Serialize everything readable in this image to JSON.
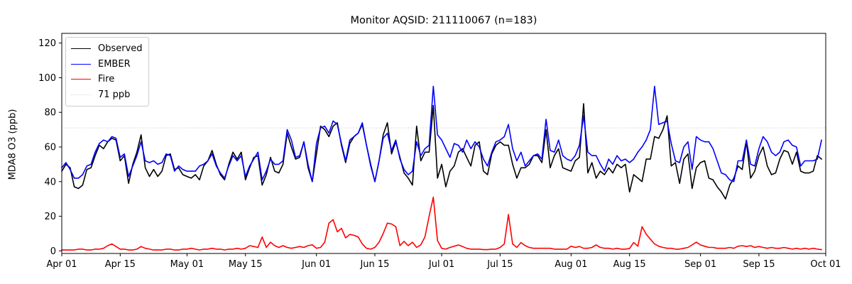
{
  "chart_data": {
    "type": "line",
    "title": "Monitor AQSID: 211110067 (n=183)",
    "ylabel": "MDA8 O3 (ppb)",
    "xlabel": "",
    "ylim": [
      -1.5,
      125.6
    ],
    "yticks": [
      0,
      20,
      40,
      60,
      80,
      100,
      120
    ],
    "x_unit": "days (daily values, Apr 01 – Sep 30)",
    "n_points": 183,
    "grid": false,
    "legend_position": "upper left",
    "xticks": [
      {
        "day": 0,
        "label": "Apr 01"
      },
      {
        "day": 14,
        "label": "Apr 15"
      },
      {
        "day": 30,
        "label": "May 01"
      },
      {
        "day": 44,
        "label": "May 15"
      },
      {
        "day": 61,
        "label": "Jun 01"
      },
      {
        "day": 75,
        "label": "Jun 15"
      },
      {
        "day": 91,
        "label": "Jul 01"
      },
      {
        "day": 105,
        "label": "Jul 15"
      },
      {
        "day": 122,
        "label": "Aug 01"
      },
      {
        "day": 136,
        "label": "Aug 15"
      },
      {
        "day": 153,
        "label": "Sep 01"
      },
      {
        "day": 167,
        "label": "Sep 15"
      },
      {
        "day": 183,
        "label": "Oct 01"
      }
    ],
    "reference_line": {
      "label": "71 ppb",
      "value": 71,
      "color": "#d9d9d9",
      "style": "dotted"
    },
    "series": [
      {
        "name": "Observed",
        "color": "#000000",
        "style": "solid",
        "values": [
          46,
          50,
          48,
          37,
          36,
          38,
          47,
          48,
          55,
          61,
          59,
          63,
          65,
          64,
          52,
          55,
          39,
          50,
          57,
          67,
          48,
          43,
          47,
          43,
          46,
          55,
          56,
          47,
          48,
          44,
          43,
          42,
          44,
          41,
          49,
          52,
          58,
          50,
          44,
          41,
          50,
          57,
          53,
          57,
          41,
          48,
          54,
          55,
          38,
          44,
          54,
          46,
          45,
          50,
          68,
          60,
          53,
          54,
          63,
          48,
          40,
          56,
          72,
          70,
          66,
          72,
          74,
          61,
          51,
          62,
          66,
          68,
          73,
          61,
          50,
          40,
          52,
          67,
          74,
          56,
          63,
          54,
          45,
          42,
          38,
          72,
          52,
          57,
          57,
          84,
          42,
          50,
          37,
          46,
          49,
          57,
          59,
          54,
          49,
          61,
          63,
          46,
          44,
          56,
          61,
          63,
          61,
          61,
          50,
          42,
          48,
          48,
          50,
          55,
          55,
          51,
          70,
          48,
          55,
          59,
          48,
          47,
          46,
          52,
          54,
          85,
          45,
          51,
          42,
          46,
          44,
          48,
          45,
          50,
          48,
          50,
          34,
          44,
          42,
          40,
          53,
          53,
          66,
          65,
          70,
          78,
          49,
          51,
          39,
          53,
          56,
          36,
          48,
          51,
          52,
          42,
          41,
          37,
          34,
          30,
          38,
          42,
          49,
          47,
          63,
          42,
          46,
          55,
          60,
          49,
          44,
          45,
          53,
          58,
          57,
          50,
          57,
          46,
          45,
          45,
          46,
          55,
          53
        ]
      },
      {
        "name": "EMBER",
        "color": "#0000ff",
        "style": "solid",
        "values": [
          48,
          51,
          47,
          42,
          42,
          44,
          49,
          50,
          57,
          62,
          64,
          63,
          66,
          65,
          54,
          56,
          43,
          49,
          55,
          63,
          52,
          51,
          52,
          50,
          51,
          56,
          55,
          46,
          49,
          47,
          46,
          46,
          46,
          49,
          50,
          52,
          56,
          49,
          45,
          42,
          49,
          55,
          52,
          55,
          43,
          49,
          53,
          57,
          41,
          46,
          53,
          50,
          50,
          52,
          70,
          64,
          54,
          55,
          63,
          50,
          40,
          62,
          71,
          72,
          68,
          75,
          73,
          62,
          52,
          64,
          66,
          68,
          74,
          61,
          49,
          40,
          52,
          65,
          68,
          58,
          64,
          53,
          47,
          44,
          46,
          63,
          55,
          59,
          61,
          95,
          67,
          64,
          59,
          54,
          62,
          61,
          57,
          64,
          59,
          63,
          60,
          53,
          49,
          57,
          63,
          64,
          66,
          73,
          59,
          52,
          57,
          49,
          52,
          55,
          56,
          53,
          76,
          58,
          57,
          64,
          55,
          53,
          52,
          55,
          61,
          78,
          57,
          55,
          55,
          50,
          46,
          53,
          50,
          55,
          52,
          53,
          51,
          53,
          57,
          60,
          64,
          70,
          95,
          73,
          74,
          75,
          62,
          52,
          51,
          60,
          63,
          47,
          66,
          64,
          63,
          63,
          59,
          52,
          45,
          44,
          41,
          40,
          52,
          52,
          64,
          50,
          49,
          59,
          66,
          63,
          57,
          55,
          57,
          63,
          64,
          61,
          60,
          49,
          52,
          52,
          52,
          53,
          64
        ]
      },
      {
        "name": "Fire",
        "color": "#ff0000",
        "style": "solid",
        "values": [
          0.5,
          0.5,
          0.5,
          0.5,
          1,
          1,
          0.5,
          0.5,
          1,
          1,
          1.5,
          3,
          4,
          2.5,
          1,
          1,
          0.5,
          0.5,
          1,
          2.5,
          1.5,
          1,
          0.5,
          0.5,
          0.5,
          1,
          1,
          0.5,
          0.5,
          1,
          1,
          1.5,
          1,
          0.5,
          1,
          1,
          1.5,
          1,
          1,
          0.5,
          1,
          1,
          1.5,
          1,
          1.5,
          3,
          2.5,
          2,
          8,
          2,
          5,
          3,
          2,
          3,
          2,
          1.5,
          2,
          2.5,
          2,
          3,
          3.5,
          1.5,
          2,
          5,
          16,
          18,
          11,
          13,
          7.5,
          9.5,
          9,
          8,
          4,
          1.5,
          1,
          2,
          5,
          10,
          16,
          15.5,
          14,
          3,
          5.5,
          3,
          5,
          2,
          3.5,
          8,
          20,
          31,
          6,
          1.5,
          1,
          2,
          2.7,
          3.4,
          2.5,
          1.5,
          1,
          1,
          1,
          0.7,
          0.7,
          1,
          1,
          2,
          4,
          21,
          4,
          2,
          4.8,
          3,
          2,
          1.5,
          1.5,
          1.5,
          1.5,
          1.5,
          1,
          1,
          1,
          1,
          2.7,
          2,
          2.5,
          1.5,
          1.5,
          2,
          3.4,
          2,
          1.5,
          1.5,
          1,
          1.5,
          1,
          1,
          1.4,
          4.8,
          2.7,
          14,
          9.6,
          6.8,
          4,
          2.7,
          2,
          1.5,
          1.5,
          1,
          1,
          1.5,
          2,
          3.4,
          5,
          3.4,
          2.7,
          2,
          2,
          1.5,
          1.5,
          1.5,
          2,
          1.5,
          2.7,
          3,
          2.5,
          3,
          2,
          2.5,
          2,
          1.5,
          2,
          1.5,
          1.5,
          2,
          1.5,
          1,
          1.5,
          1,
          1.5,
          1,
          1.5,
          1,
          0.7
        ]
      }
    ],
    "legend_entries": [
      "Observed",
      "EMBER",
      "Fire",
      "71 ppb"
    ]
  }
}
